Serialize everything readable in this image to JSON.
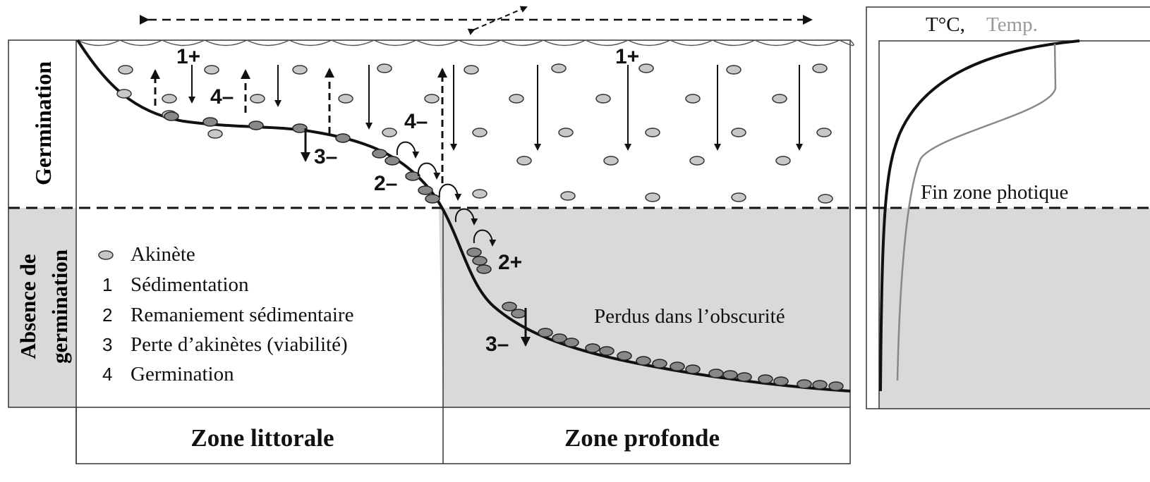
{
  "side_labels": {
    "top": "Germination",
    "bottom_line1": "Absence de",
    "bottom_line2": "germination"
  },
  "process_labels": [
    "1+",
    "1+",
    "4–",
    "4–",
    "3–",
    "3–",
    "2–",
    "2+"
  ],
  "legend": [
    {
      "key": "",
      "text": "Akinète"
    },
    {
      "key": "1",
      "text": "Sédimentation"
    },
    {
      "key": "2",
      "text": "Remaniement  sédimentaire"
    },
    {
      "key": "3",
      "text": "Perte d’akinètes  (viabilité)"
    },
    {
      "key": "4",
      "text": "Germination"
    }
  ],
  "deep_note": "Perdus dans l’obscurité",
  "profile": {
    "title_black": "T°C,",
    "title_gray": "Temp.",
    "photic": "Fin zone photique"
  },
  "zones": [
    "Zone littorale",
    "Zone profonde"
  ]
}
